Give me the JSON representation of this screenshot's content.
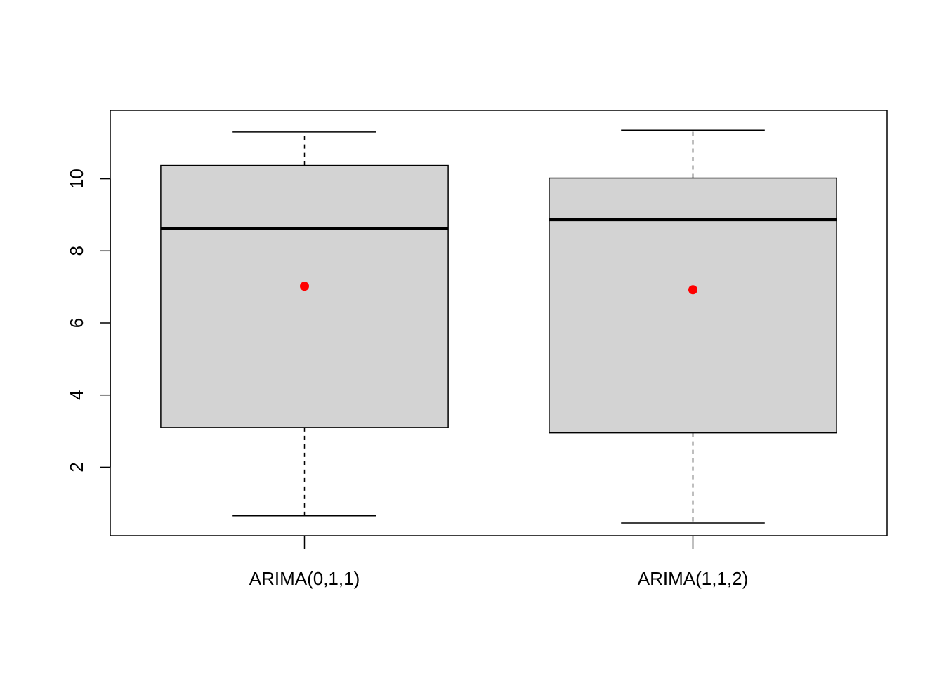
{
  "chart_data": {
    "type": "boxplot",
    "title": "",
    "xlabel": "",
    "ylabel": "",
    "ylim": [
      0.1,
      11.9
    ],
    "yticks": [
      2,
      4,
      6,
      8,
      10
    ],
    "ytick_labels": [
      "2",
      "4",
      "6",
      "8",
      "10"
    ],
    "categories": [
      "ARIMA(0,1,1)",
      "ARIMA(1,1,2)"
    ],
    "boxes": [
      {
        "category": "ARIMA(0,1,1)",
        "whisker_low": 0.65,
        "q1": 3.1,
        "median": 8.62,
        "q3": 10.37,
        "whisker_high": 11.3,
        "mean": 7.02
      },
      {
        "category": "ARIMA(1,1,2)",
        "whisker_low": 0.45,
        "q1": 2.95,
        "median": 8.87,
        "q3": 10.02,
        "whisker_high": 11.35,
        "mean": 6.92
      }
    ],
    "grid": false,
    "colors": {
      "box_fill": "#d3d3d3",
      "outline": "#000000",
      "mean_marker": "#ff0000"
    }
  }
}
